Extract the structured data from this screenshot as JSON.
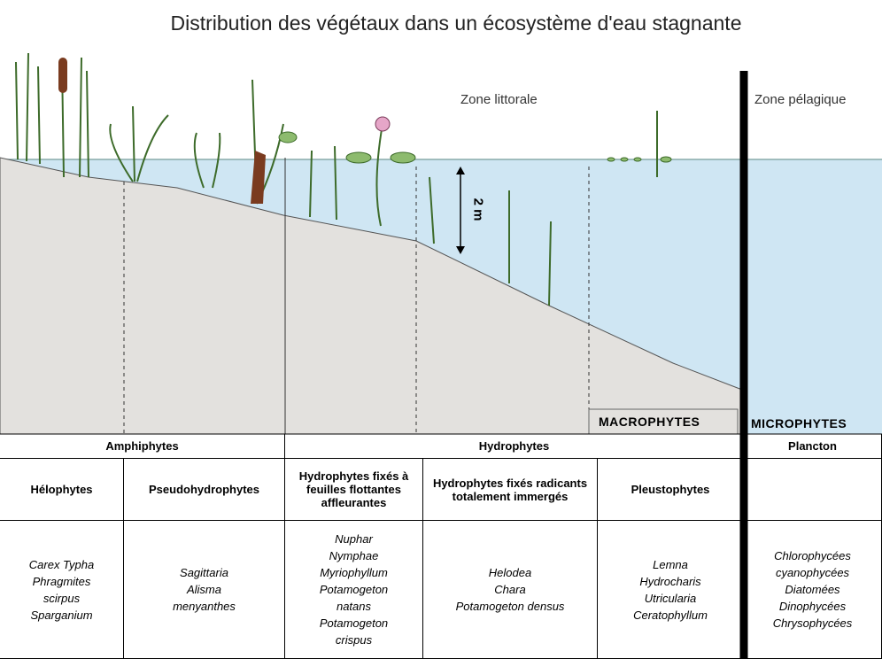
{
  "title": "Distribution des végétaux dans un écosystème d'eau stagnante",
  "zones": {
    "littoral": "Zone littorale",
    "pelagic": "Zone pélagique"
  },
  "depth_label": "2 m",
  "groups": {
    "macro": "MACROPHYTES",
    "micro": "MICROPHYTES"
  },
  "table": {
    "header": [
      "Amphiphytes",
      "Hydrophytes",
      "Plancton"
    ],
    "subheader": [
      "Hélophytes",
      "Pseudohydrophytes",
      "Hydrophytes fixés à feuilles flottantes affleurantes",
      "Hydrophytes fixés radicants totalement immergés",
      "Pleustophytes"
    ],
    "species": [
      [
        "Carex  Typha",
        "Phragmites",
        "scirpus",
        "Sparganium"
      ],
      [
        "Sagittaria",
        "Alisma",
        "menyanthes"
      ],
      [
        "Nuphar",
        "Nymphae",
        "Myriophyllum",
        "Potamogeton",
        "natans",
        "Potamogeton",
        "crispus"
      ],
      [
        "Helodea",
        "Chara",
        "Potamogeton densus"
      ],
      [
        "Lemna",
        "Hydrocharis",
        "Utricularia",
        "Ceratophyllum"
      ],
      [
        "Chlorophycées",
        "cyanophycées",
        "Diatomées",
        "Dinophycées",
        "Chrysophycées"
      ]
    ]
  }
}
